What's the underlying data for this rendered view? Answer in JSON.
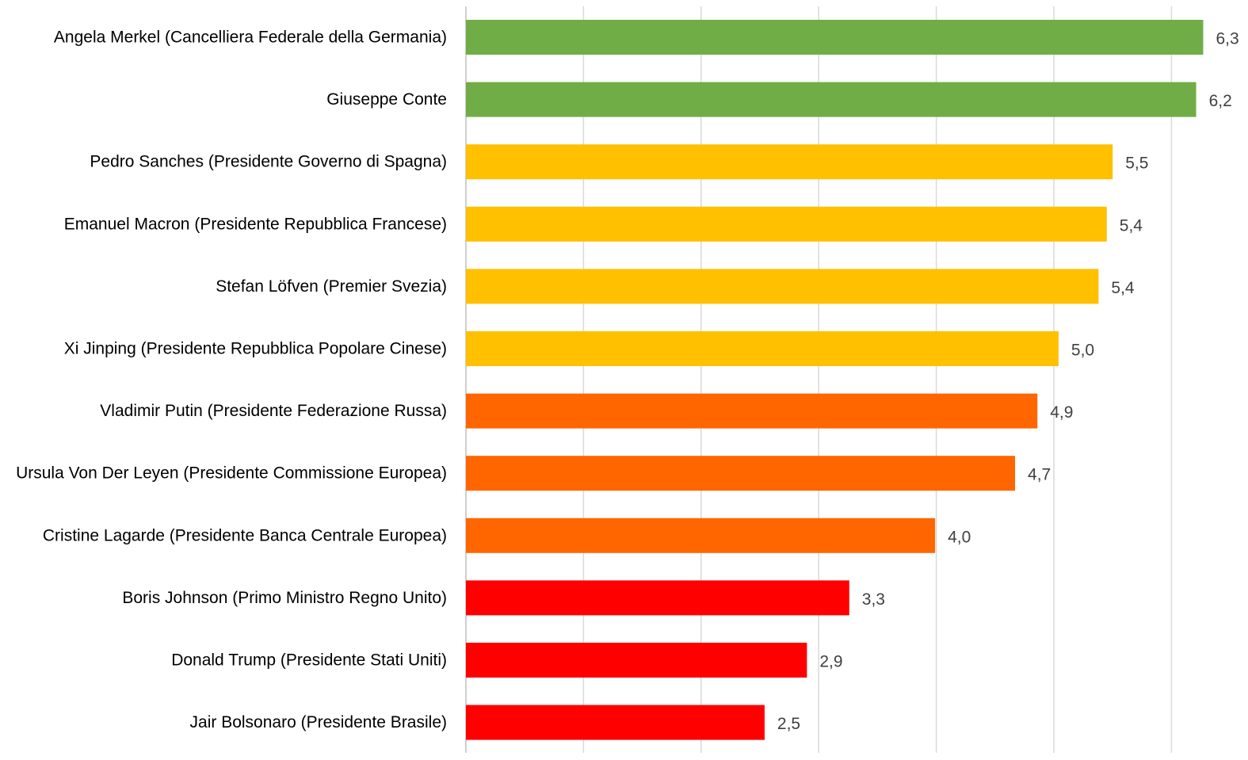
{
  "chart_data": {
    "type": "bar",
    "orientation": "horizontal",
    "title": "",
    "xlabel": "",
    "ylabel": "",
    "xlim": [
      0,
      6.5
    ],
    "grid": true,
    "legend": "none",
    "categories": [
      "Angela Merkel (Cancelliera Federale della Germania)",
      "Giuseppe Conte",
      "Pedro Sanches (Presidente Governo di Spagna)",
      "Emanuel Macron (Presidente Repubblica Francese)",
      "Stefan Löfven (Premier Svezia)",
      "Xi Jinping (Presidente Repubblica Popolare Cinese)",
      "Vladimir Putin (Presidente Federazione Russa)",
      "Ursula Von Der Leyen (Presidente Commissione Europea)",
      "Cristine Lagarde (Presidente Banca Centrale Europea)",
      "Boris Johnson (Primo Ministro Regno Unito)",
      "Donald Trump (Presidente Stati Uniti)",
      "Jair Bolsonaro (Presidente Brasile)"
    ],
    "values": [
      6.27,
      6.21,
      5.5,
      5.45,
      5.38,
      5.04,
      4.86,
      4.67,
      3.99,
      3.26,
      2.9,
      2.54
    ],
    "value_labels": [
      "6,3",
      "6,2",
      "5,5",
      "5,4",
      "5,4",
      "5,0",
      "4,9",
      "4,7",
      "4,0",
      "3,3",
      "2,9",
      "2,5"
    ],
    "bar_colors": [
      "#70ad47",
      "#70ad47",
      "#ffc000",
      "#ffc000",
      "#ffc000",
      "#ffc000",
      "#ff6600",
      "#ff6600",
      "#ff6600",
      "#ff0000",
      "#ff0000",
      "#ff0000"
    ]
  }
}
